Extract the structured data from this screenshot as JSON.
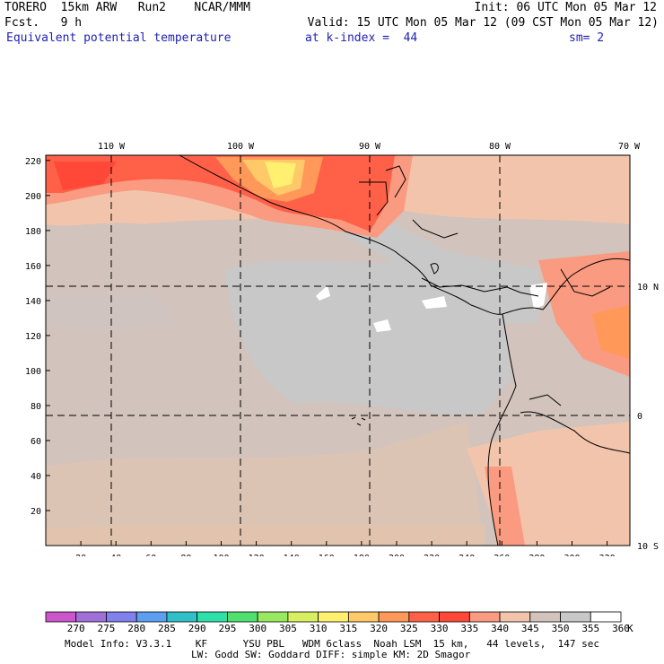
{
  "header": {
    "model": "TORERO  15km ARW   Run2    NCAR/MMM",
    "init": "Init: 06 UTC Mon 05 Mar 12",
    "fcst": "Fcst.   9 h",
    "valid": "Valid: 15 UTC Mon 05 Mar 12 (09 CST Mon 05 Mar 12)",
    "field": "Equivalent potential temperature",
    "level": "at k-index =  44",
    "smooth": "sm= 2"
  },
  "map": {
    "lon_labels": [
      "110 W",
      "100 W",
      "90 W",
      "80 W",
      "70 W"
    ],
    "lat_labels": [
      "10 N",
      "0",
      "10 S"
    ],
    "x_ticks": [
      "20",
      "40",
      "60",
      "80",
      "100",
      "120",
      "140",
      "160",
      "180",
      "200",
      "220",
      "240",
      "260",
      "280",
      "300",
      "320"
    ],
    "y_ticks": [
      "20",
      "40",
      "60",
      "80",
      "100",
      "120",
      "140",
      "160",
      "180",
      "200",
      "220"
    ]
  },
  "colorbar": {
    "values": [
      "270",
      "275",
      "280",
      "285",
      "290",
      "295",
      "300",
      "305",
      "310",
      "315",
      "320",
      "325",
      "330",
      "335",
      "340",
      "345",
      "350",
      "355",
      "360"
    ],
    "unit": "K",
    "colors": [
      "#cc55cc",
      "#a070d8",
      "#8080ee",
      "#5c9ef0",
      "#2fc0c8",
      "#2fe0a8",
      "#50e070",
      "#98e860",
      "#d8f060",
      "#fff070",
      "#ffc868",
      "#ff9858",
      "#ff6048",
      "#ff4838",
      "#fa9a80",
      "#f2c4ab",
      "#d2c3bc",
      "#c8c8c8",
      "#ffffff"
    ]
  },
  "footer": {
    "line1": "Model Info: V3.3.1    KF      YSU PBL   WDM 6class  Noah LSM  15 km,   44 levels,  147 sec",
    "line2": "LW: Godd SW: Goddard DIFF: simple KM: 2D Smagor"
  }
}
